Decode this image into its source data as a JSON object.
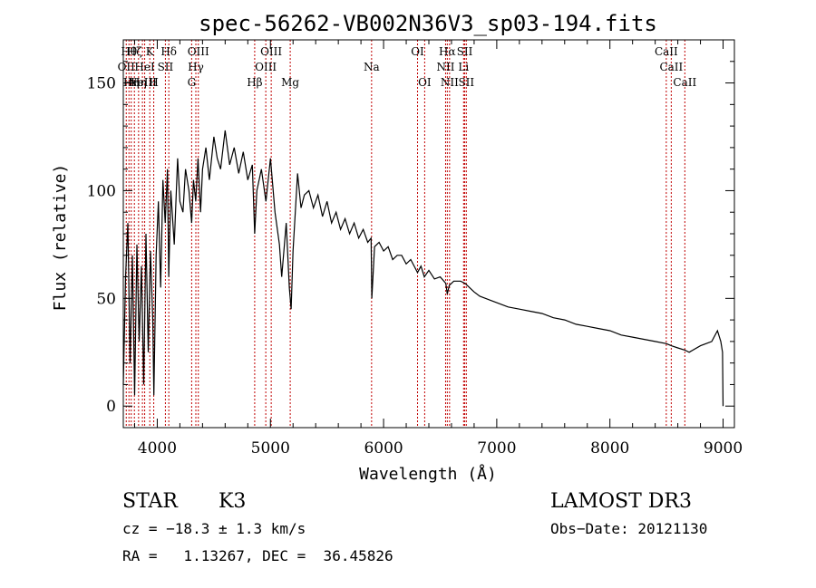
{
  "chart_data": {
    "type": "line",
    "title": "spec-56262-VB002N36V3_sp03-194.fits",
    "xlabel": "Wavelength (Å)",
    "ylabel": "Flux (relative)",
    "xlim": [
      3700,
      9100
    ],
    "ylim": [
      -10,
      170
    ],
    "xticks": [
      4000,
      5000,
      6000,
      7000,
      8000,
      9000
    ],
    "xtick_labels": [
      "4000",
      "5000",
      "6000",
      "7000",
      "8000",
      "9000"
    ],
    "yticks": [
      0,
      50,
      100,
      150
    ],
    "ytick_labels": [
      "0",
      "50",
      "100",
      "150"
    ],
    "grid": false,
    "legend": "none",
    "line_color": "#000000",
    "marker_color": "#c00000",
    "series": [
      {
        "name": "flux",
        "x": [
          3700,
          3720,
          3740,
          3760,
          3780,
          3800,
          3820,
          3840,
          3860,
          3880,
          3900,
          3920,
          3940,
          3960,
          3970,
          3990,
          4010,
          4030,
          4050,
          4070,
          4090,
          4101,
          4120,
          4150,
          4180,
          4200,
          4227,
          4250,
          4280,
          4304,
          4320,
          4340,
          4360,
          4383,
          4400,
          4430,
          4460,
          4500,
          4530,
          4560,
          4600,
          4640,
          4680,
          4720,
          4760,
          4800,
          4840,
          4861,
          4880,
          4920,
          4960,
          5000,
          5040,
          5080,
          5100,
          5140,
          5167,
          5183,
          5200,
          5240,
          5270,
          5300,
          5340,
          5380,
          5420,
          5460,
          5500,
          5540,
          5580,
          5620,
          5660,
          5700,
          5740,
          5780,
          5820,
          5860,
          5890,
          5896,
          5920,
          5960,
          6000,
          6040,
          6080,
          6120,
          6160,
          6200,
          6240,
          6280,
          6300,
          6330,
          6360,
          6400,
          6450,
          6500,
          6550,
          6563,
          6580,
          6620,
          6680,
          6720,
          6760,
          6800,
          6850,
          6900,
          6950,
          7000,
          7100,
          7200,
          7300,
          7400,
          7500,
          7600,
          7700,
          7800,
          7900,
          8000,
          8100,
          8200,
          8300,
          8400,
          8500,
          8542,
          8600,
          8662,
          8700,
          8800,
          8900,
          8950,
          8980,
          8995,
          9000
        ],
        "values": [
          10,
          60,
          85,
          20,
          70,
          5,
          75,
          30,
          65,
          10,
          80,
          25,
          72,
          40,
          5,
          70,
          95,
          55,
          105,
          85,
          110,
          60,
          100,
          75,
          115,
          95,
          90,
          110,
          100,
          85,
          105,
          95,
          115,
          90,
          110,
          120,
          105,
          125,
          115,
          110,
          128,
          112,
          120,
          108,
          118,
          105,
          112,
          80,
          100,
          110,
          95,
          115,
          90,
          75,
          60,
          85,
          55,
          45,
          72,
          108,
          92,
          98,
          100,
          92,
          98,
          88,
          95,
          85,
          90,
          82,
          87,
          80,
          85,
          78,
          82,
          76,
          78,
          50,
          74,
          76,
          72,
          74,
          68,
          70,
          70,
          66,
          68,
          64,
          62,
          65,
          60,
          63,
          59,
          60,
          57,
          52,
          56,
          58,
          58,
          57,
          55,
          53,
          51,
          50,
          49,
          48,
          46,
          45,
          44,
          43,
          41,
          40,
          38,
          37,
          36,
          35,
          33,
          32,
          31,
          30,
          29,
          28,
          27,
          26,
          25,
          28,
          30,
          35,
          30,
          25,
          0
        ]
      }
    ],
    "line_markers": [
      {
        "wave": 3726,
        "label": "OII",
        "row": 2
      },
      {
        "wave": 3750,
        "label": "Hθ",
        "row": 1
      },
      {
        "wave": 3770,
        "label": "Hη",
        "row": 3
      },
      {
        "wave": 3798,
        "label": "Hζ",
        "row": 1
      },
      {
        "wave": 3835,
        "label": "Hη",
        "row": 3
      },
      {
        "wave": 3869,
        "label": "NeIII",
        "row": 3
      },
      {
        "wave": 3889,
        "label": "HeI",
        "row": 2
      },
      {
        "wave": 3934,
        "label": "K",
        "row": 1
      },
      {
        "wave": 3969,
        "label": "H",
        "row": 3
      },
      {
        "wave": 4072,
        "label": "SII",
        "row": 2
      },
      {
        "wave": 4102,
        "label": "Hδ",
        "row": 1
      },
      {
        "wave": 4304,
        "label": "G",
        "row": 3
      },
      {
        "wave": 4341,
        "label": "Hγ",
        "row": 2
      },
      {
        "wave": 4363,
        "label": "OIII",
        "row": 1
      },
      {
        "wave": 4861,
        "label": "Hβ",
        "row": 3
      },
      {
        "wave": 4959,
        "label": "OIII",
        "row": 2
      },
      {
        "wave": 5007,
        "label": "OIII",
        "row": 1
      },
      {
        "wave": 5175,
        "label": "Mg",
        "row": 3
      },
      {
        "wave": 5894,
        "label": "Na",
        "row": 2
      },
      {
        "wave": 6300,
        "label": "OI",
        "row": 1
      },
      {
        "wave": 6363,
        "label": "OI",
        "row": 3
      },
      {
        "wave": 6548,
        "label": "NII",
        "row": 2
      },
      {
        "wave": 6563,
        "label": "Hα",
        "row": 1
      },
      {
        "wave": 6583,
        "label": "NII",
        "row": 3
      },
      {
        "wave": 6707,
        "label": "Li",
        "row": 2
      },
      {
        "wave": 6717,
        "label": "SII",
        "row": 1
      },
      {
        "wave": 6731,
        "label": "SII",
        "row": 3
      },
      {
        "wave": 8498,
        "label": "CaII",
        "row": 1
      },
      {
        "wave": 8542,
        "label": "CaII",
        "row": 2
      },
      {
        "wave": 8662,
        "label": "CaII",
        "row": 3
      }
    ]
  },
  "info": {
    "object_class": "STAR",
    "subclass": "K3",
    "survey": "LAMOST DR3",
    "cz_line": "cz = −18.3 ± 1.3 km/s",
    "obs_date": "Obs−Date: 20121130",
    "radec_line": "RA =   1.13267, DEC =  36.45826"
  }
}
